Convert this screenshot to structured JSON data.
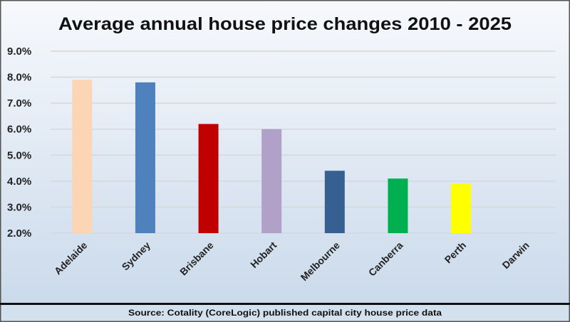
{
  "chart_data": {
    "type": "bar",
    "title": "Average annual house price changes 2010 - 2025",
    "xlabel": "",
    "ylabel": "",
    "categories": [
      "Adelaide",
      "Sydney",
      "Brisbane",
      "Hobart",
      "Melbourne",
      "Canberra",
      "Perth",
      "Darwin"
    ],
    "values": [
      7.9,
      7.8,
      6.2,
      6.0,
      4.4,
      4.1,
      3.9,
      null
    ],
    "colors": [
      "#fcd5b4",
      "#4f81bd",
      "#c00000",
      "#b1a0c7",
      "#366092",
      "#00b050",
      "#ffff00",
      "#cccccc"
    ],
    "ylim": [
      2.0,
      9.0
    ],
    "yticks": [
      "2.0%",
      "3.0%",
      "4.0%",
      "5.0%",
      "6.0%",
      "7.0%",
      "8.0%",
      "9.0%"
    ],
    "grid": true,
    "legend": "none"
  },
  "footer": {
    "source": "Source: Cotality (CoreLogic) published capital city  house price data"
  }
}
